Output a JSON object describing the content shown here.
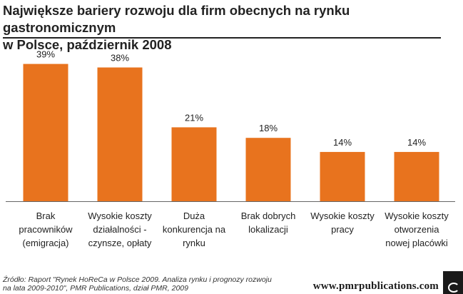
{
  "header": {
    "title_line1": "Największe bariery rozwoju dla firm obecnych na rynku gastronomicznym",
    "title_line2": "w Polsce, październik 2008"
  },
  "chart_data": {
    "type": "bar",
    "title": "Największe bariery rozwoju dla firm obecnych na rynku gastronomicznym w Polsce, październik 2008",
    "categories": [
      "Brak pracowników (emigracja)",
      "Wysokie koszty działalności - czynsze, opłaty",
      "Duża konkurencja na rynku",
      "Brak dobrych lokalizacji",
      "Wysokie koszty pracy",
      "Wysokie koszty otworzenia nowej placówki"
    ],
    "category_lines": [
      [
        "Brak",
        "pracowników",
        "(emigracja)"
      ],
      [
        "Wysokie koszty",
        "działalności -",
        "czynsze, opłaty"
      ],
      [
        "Duża",
        "konkurencja na",
        "rynku"
      ],
      [
        "Brak dobrych",
        "lokalizacji"
      ],
      [
        "Wysokie koszty",
        "pracy"
      ],
      [
        "Wysokie koszty",
        "otworzenia",
        "nowej placówki"
      ]
    ],
    "values": [
      39,
      38,
      21,
      18,
      14,
      14
    ],
    "data_labels": [
      "39%",
      "38%",
      "21%",
      "18%",
      "14%",
      "14%"
    ],
    "unit": "%",
    "ylim": [
      0,
      45
    ],
    "bar_color": "#e8731e",
    "axis_color": "#666666",
    "grid": false,
    "legend": "none"
  },
  "footer": {
    "source_line1": "Źródło: Raport \"Rynek HoReCa w Polsce 2009. Analiza rynku i prognozy rozwoju",
    "source_line2": "na lata 2009-2010\", PMR Publications, dział PMR, 2009",
    "url": "www.pmrpublications.com"
  }
}
